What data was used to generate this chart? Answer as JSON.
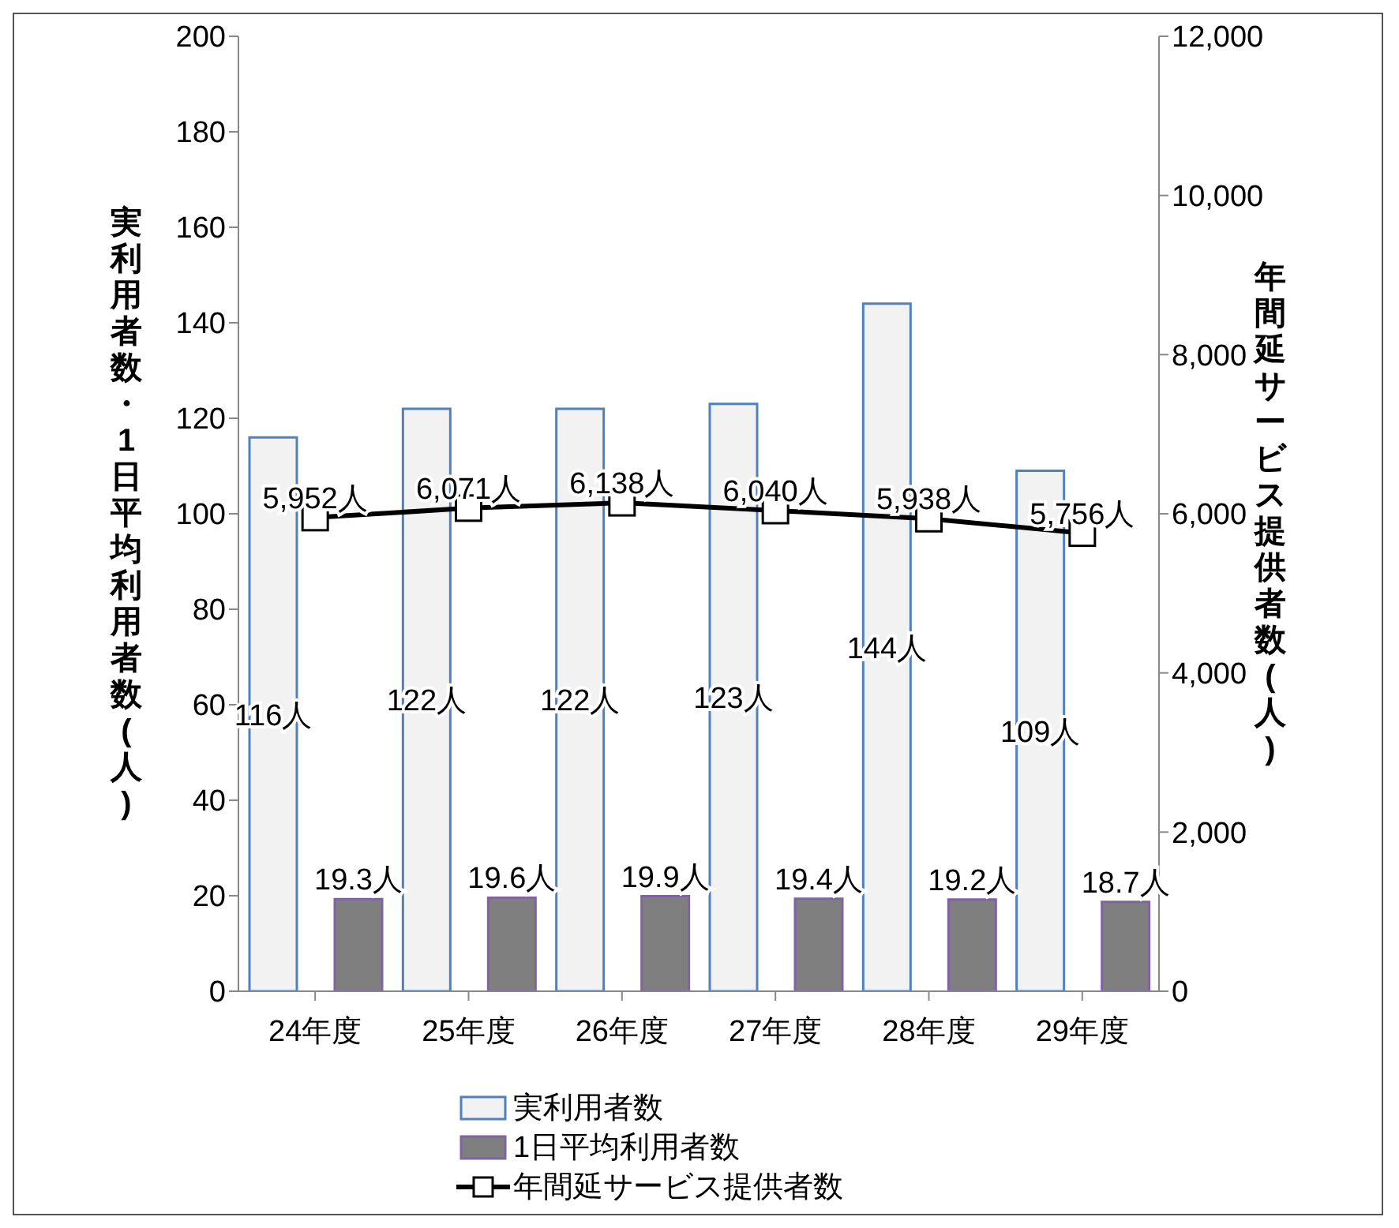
{
  "chart_data": {
    "type": "bar",
    "categories": [
      "24年度",
      "25年度",
      "26年度",
      "27年度",
      "28年度",
      "29年度"
    ],
    "ylabel": "実利用者数・1日平均利用者数(人)",
    "y2label": "年間延サービス提供者数(人)",
    "series": [
      {
        "name": "実利用者数",
        "color": "#f2f2f2",
        "values": [
          116,
          122,
          122,
          123,
          144,
          109
        ],
        "value_labels": [
          "116人",
          "122人",
          "122人",
          "123人",
          "144人",
          "109人"
        ]
      },
      {
        "name": "1日平均利用者数",
        "color": "#7f7f7f",
        "values": [
          19.3,
          19.6,
          19.9,
          19.4,
          19.2,
          18.7
        ],
        "value_labels": [
          "19.3人",
          "19.6人",
          "19.9人",
          "19.4人",
          "19.2人",
          "18.7人"
        ]
      },
      {
        "name": "年間延サービス提供者数",
        "type": "line",
        "axis": "y2",
        "color": "#000000",
        "marker": "square",
        "values": [
          5952,
          6071,
          6138,
          6040,
          5938,
          5756
        ],
        "value_labels": [
          "5,952人",
          "6,071人",
          "6,138人",
          "6,040人",
          "5,938人",
          "5,756人"
        ]
      }
    ],
    "ylim": [
      0,
      200
    ],
    "yticks": [
      0,
      20,
      40,
      60,
      80,
      100,
      120,
      140,
      160,
      180,
      200
    ],
    "y2lim": [
      0,
      12000
    ],
    "y2ticks": [
      {
        "value": 0,
        "label": "0"
      },
      {
        "value": 2000,
        "label": "2,000"
      },
      {
        "value": 4000,
        "label": "4,000"
      },
      {
        "value": 6000,
        "label": "6,000"
      },
      {
        "value": 8000,
        "label": "8,000"
      },
      {
        "value": 10000,
        "label": "10,000"
      },
      {
        "value": 12000,
        "label": "12,000"
      }
    ],
    "legend": "bottom"
  }
}
